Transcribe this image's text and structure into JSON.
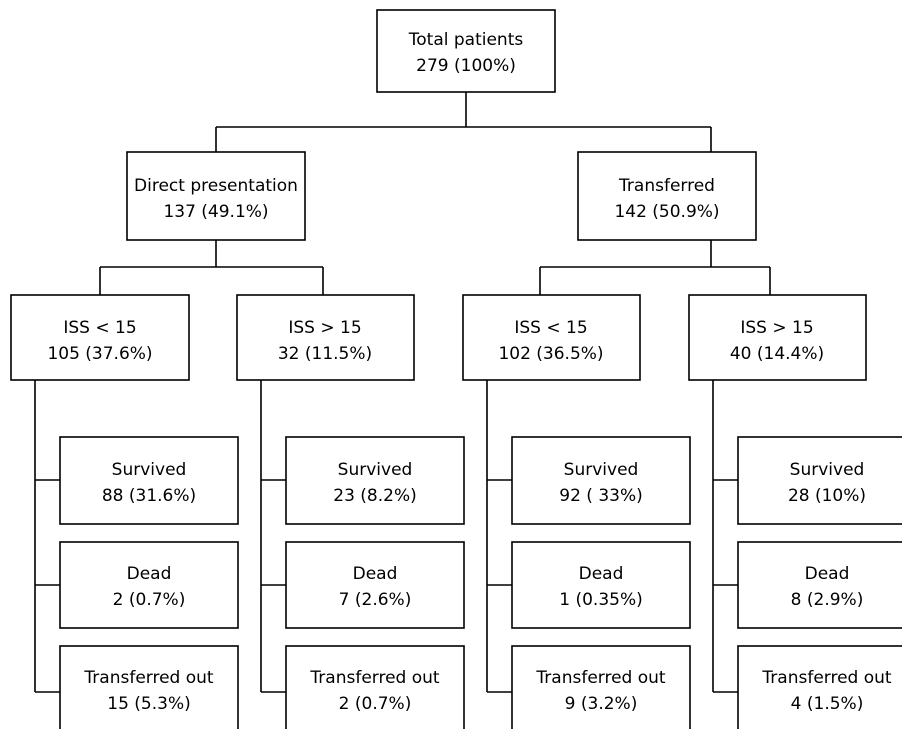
{
  "root": {
    "title": "Total patients",
    "value": "279 (100%)"
  },
  "groups": [
    {
      "title": "Direct presentation",
      "value": "137 (49.1%)",
      "subgroups": [
        {
          "title": "ISS < 15",
          "value": "105 (37.6%)",
          "outcomes": [
            {
              "title": "Survived",
              "value": "88 (31.6%)"
            },
            {
              "title": "Dead",
              "value": "2 (0.7%)"
            },
            {
              "title": "Transferred out",
              "value": "15 (5.3%)"
            }
          ]
        },
        {
          "title": "ISS > 15",
          "value": "32 (11.5%)",
          "outcomes": [
            {
              "title": "Survived",
              "value": "23 (8.2%)"
            },
            {
              "title": "Dead",
              "value": "7 (2.6%)"
            },
            {
              "title": "Transferred out",
              "value": "2 (0.7%)"
            }
          ]
        }
      ]
    },
    {
      "title": "Transferred",
      "value": "142 (50.9%)",
      "subgroups": [
        {
          "title": "ISS < 15",
          "value": "102 (36.5%)",
          "outcomes": [
            {
              "title": "Survived",
              "value": "92 ( 33%)"
            },
            {
              "title": "Dead",
              "value": "1 (0.35%)"
            },
            {
              "title": "Transferred out",
              "value": "9 (3.2%)"
            }
          ]
        },
        {
          "title": "ISS > 15",
          "value": "40 (14.4%)",
          "outcomes": [
            {
              "title": "Survived",
              "value": "28 (10%)"
            },
            {
              "title": "Dead",
              "value": "8 (2.9%)"
            },
            {
              "title": "Transferred out",
              "value": "4 (1.5%)"
            }
          ]
        }
      ]
    }
  ]
}
